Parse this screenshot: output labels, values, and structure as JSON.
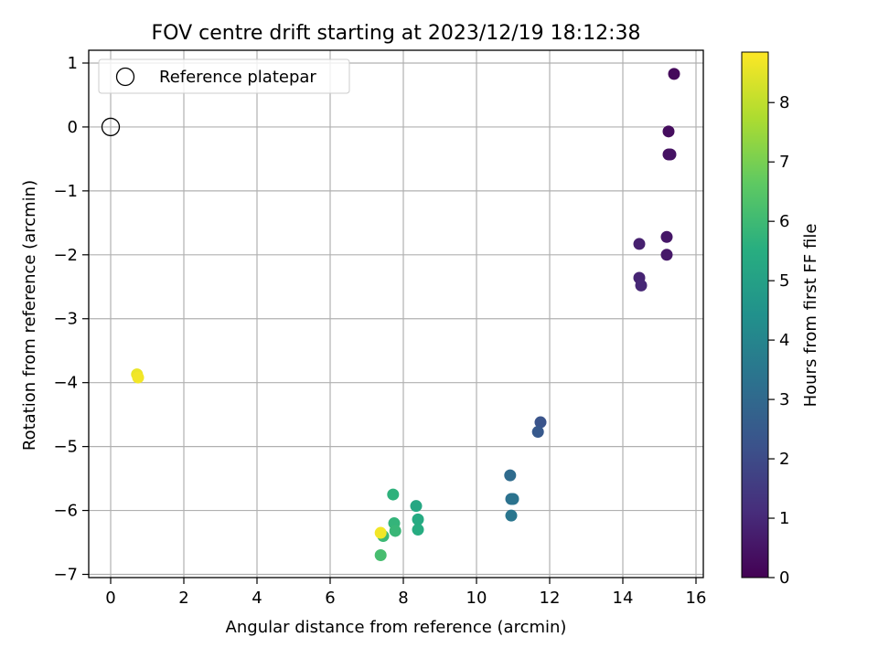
{
  "chart_data": {
    "type": "scatter",
    "title": "FOV centre drift starting at 2023/12/19 18:12:38",
    "xlabel": "Angular distance from reference (arcmin)",
    "ylabel": "Rotation from reference (arcmin)",
    "xlim": [
      -0.6,
      16.2
    ],
    "ylim": [
      -7.05,
      1.2
    ],
    "xticks": [
      0,
      2,
      4,
      6,
      8,
      10,
      12,
      14,
      16
    ],
    "xtick_labels": [
      "0",
      "2",
      "4",
      "6",
      "8",
      "10",
      "12",
      "14",
      "16"
    ],
    "yticks": [
      1,
      0,
      -1,
      -2,
      -3,
      -4,
      -5,
      -6,
      -7
    ],
    "ytick_labels": [
      "1",
      "0",
      "−1",
      "−2",
      "−3",
      "−4",
      "−5",
      "−6",
      "−7"
    ],
    "grid": true,
    "legend": {
      "position": "top-left",
      "entries": [
        "Reference platepar"
      ]
    },
    "reference_point": {
      "x": 0,
      "y": 0,
      "label": "Reference platepar"
    },
    "colorbar": {
      "label": "Hours from first FF file",
      "range": [
        0,
        8.85
      ],
      "ticks": [
        0,
        1,
        2,
        3,
        4,
        5,
        6,
        7,
        8
      ],
      "tick_labels": [
        "0",
        "1",
        "2",
        "3",
        "4",
        "5",
        "6",
        "7",
        "8"
      ],
      "colormap": "viridis"
    },
    "points": [
      {
        "x": 15.4,
        "y": 0.83,
        "t": 0.2
      },
      {
        "x": 15.25,
        "y": -0.07,
        "t": 0.3
      },
      {
        "x": 15.25,
        "y": -0.43,
        "t": 0.4
      },
      {
        "x": 15.3,
        "y": -0.43,
        "t": 0.45
      },
      {
        "x": 15.2,
        "y": -1.72,
        "t": 0.55
      },
      {
        "x": 15.2,
        "y": -2.0,
        "t": 0.6
      },
      {
        "x": 14.45,
        "y": -1.83,
        "t": 0.8
      },
      {
        "x": 14.45,
        "y": -2.36,
        "t": 0.9
      },
      {
        "x": 14.5,
        "y": -2.48,
        "t": 1.0
      },
      {
        "x": 11.75,
        "y": -4.62,
        "t": 2.3
      },
      {
        "x": 11.68,
        "y": -4.77,
        "t": 2.5
      },
      {
        "x": 10.92,
        "y": -5.45,
        "t": 3.1
      },
      {
        "x": 10.95,
        "y": -5.82,
        "t": 3.3
      },
      {
        "x": 11.0,
        "y": -5.82,
        "t": 3.4
      },
      {
        "x": 10.95,
        "y": -6.08,
        "t": 3.5
      },
      {
        "x": 8.35,
        "y": -5.93,
        "t": 5.3
      },
      {
        "x": 8.4,
        "y": -6.14,
        "t": 5.4
      },
      {
        "x": 8.4,
        "y": -6.3,
        "t": 5.5
      },
      {
        "x": 7.72,
        "y": -5.75,
        "t": 5.7
      },
      {
        "x": 7.75,
        "y": -6.2,
        "t": 5.8
      },
      {
        "x": 7.78,
        "y": -6.32,
        "t": 5.9
      },
      {
        "x": 7.45,
        "y": -6.4,
        "t": 6.0
      },
      {
        "x": 7.38,
        "y": -6.7,
        "t": 6.2
      },
      {
        "x": 7.38,
        "y": -6.35,
        "t": 8.7
      },
      {
        "x": 0.72,
        "y": -3.87,
        "t": 8.6
      },
      {
        "x": 0.75,
        "y": -3.92,
        "t": 8.7
      }
    ]
  }
}
